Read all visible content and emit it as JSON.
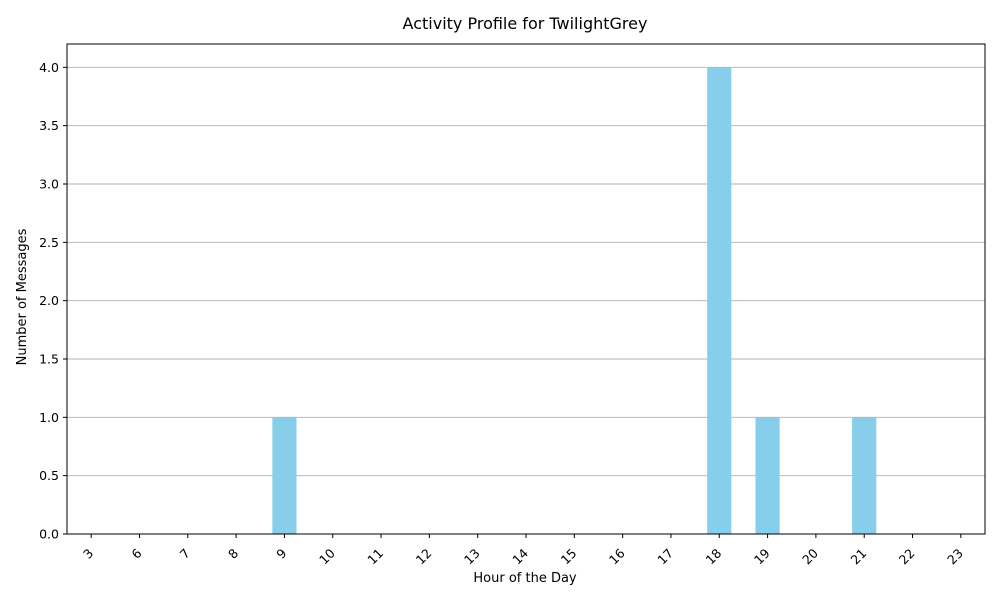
{
  "chart_data": {
    "type": "bar",
    "title": "Activity Profile for TwilightGrey",
    "xlabel": "Hour of the Day",
    "ylabel": "Number of Messages",
    "categories": [
      "3",
      "6",
      "7",
      "8",
      "9",
      "10",
      "11",
      "12",
      "13",
      "14",
      "15",
      "16",
      "17",
      "18",
      "19",
      "20",
      "21",
      "22",
      "23"
    ],
    "values": [
      0,
      0,
      0,
      0,
      1,
      0,
      0,
      0,
      0,
      0,
      0,
      0,
      0,
      4,
      1,
      0,
      1,
      0,
      0
    ],
    "ylim": [
      0,
      4.2
    ],
    "yticks": [
      "0.0",
      "0.5",
      "1.0",
      "1.5",
      "2.0",
      "2.5",
      "3.0",
      "3.5",
      "4.0"
    ],
    "grid": "y-axis",
    "bar_color": "#87ceeb",
    "xtick_rotation": 45
  }
}
